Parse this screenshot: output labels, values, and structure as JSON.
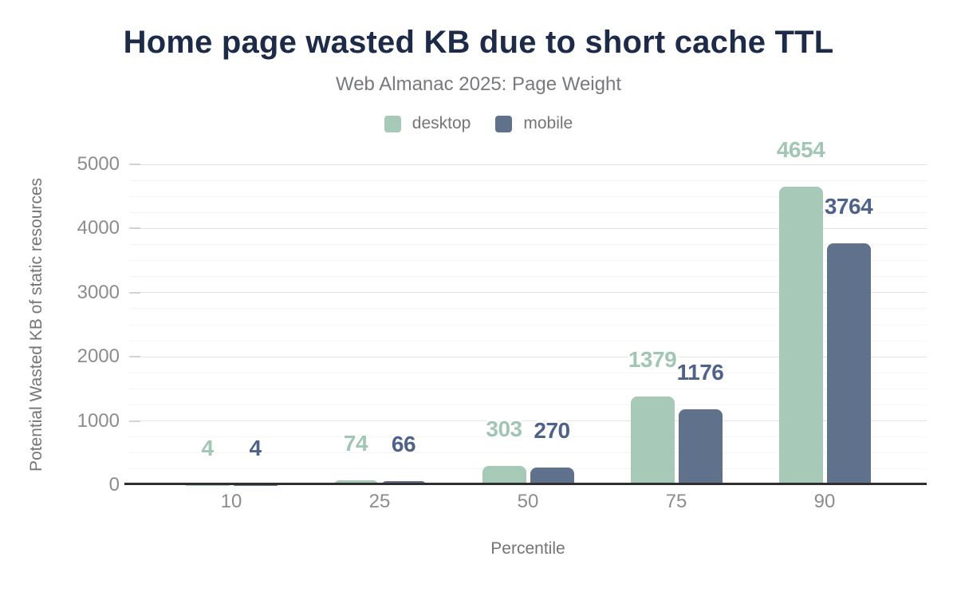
{
  "header": {
    "title": "Home page wasted KB due to short cache TTL",
    "subtitle": "Web Almanac 2025: Page Weight"
  },
  "chart_data": {
    "type": "bar",
    "title": "Home page wasted KB due to short cache TTL",
    "subtitle": "Web Almanac 2025: Page Weight",
    "categories": [
      "10",
      "25",
      "50",
      "75",
      "90"
    ],
    "series": [
      {
        "name": "desktop",
        "color": "#a6c9b8",
        "label_color": "#a2c6b4",
        "values": [
          4,
          74,
          303,
          1379,
          4654
        ]
      },
      {
        "name": "mobile",
        "color": "#60718c",
        "label_color": "#4e628a",
        "values": [
          4,
          66,
          270,
          1176,
          3764
        ]
      }
    ],
    "xlabel": "Percentile",
    "ylabel": "Potential Wasted KB of static resources",
    "ylim": [
      0,
      5000
    ],
    "ytick_step": 1000,
    "yminor_step": 250,
    "ytick_labels": [
      "0",
      "1000",
      "2000",
      "3000",
      "4000",
      "5000"
    ],
    "grid": "on",
    "legend_position": "top",
    "data_labels": "shown above bars"
  },
  "colors": {
    "background": "#ffffff",
    "title": "#1d2b49",
    "subtitle": "#77797c",
    "legend_label": "#757575",
    "tick_label": "#8c8c8c",
    "axis_title": "#757575",
    "axis_line": "#2f2f2f",
    "grid_major": "#e3e3e3",
    "grid_minor": "#f4f4f4",
    "tick_mark": "#d2d2d2"
  }
}
